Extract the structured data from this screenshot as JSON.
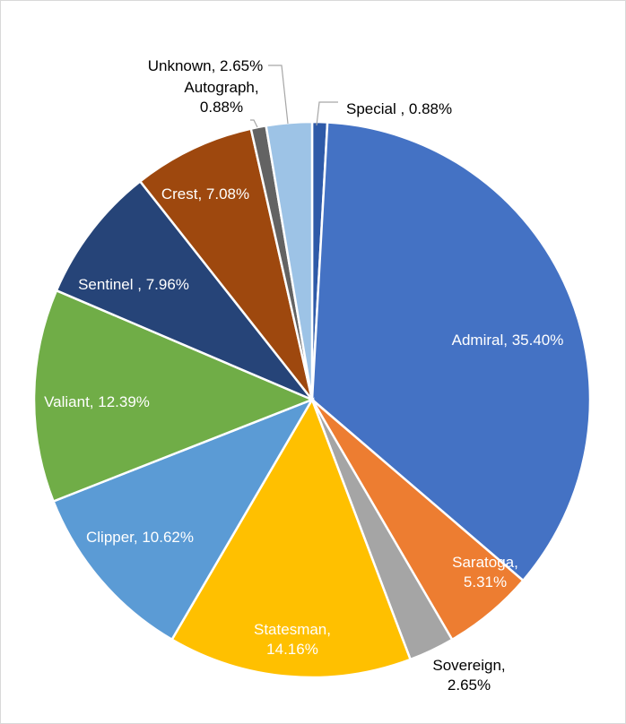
{
  "chart_data": {
    "type": "pie",
    "title": "",
    "slices": [
      {
        "label": "Special ",
        "value": 0.88,
        "display": [
          "Special , 0.88%"
        ],
        "color": "#2e5aa8",
        "label_color": "#000000"
      },
      {
        "label": "Admiral",
        "value": 35.4,
        "display": [
          "Admiral, 35.40%"
        ],
        "color": "#4472c4",
        "label_color": "#ffffff"
      },
      {
        "label": "Saratoga",
        "value": 5.31,
        "display": [
          "Saratoga,",
          "5.31%"
        ],
        "color": "#ed7d31",
        "label_color": "#ffffff"
      },
      {
        "label": "Sovereign",
        "value": 2.65,
        "display": [
          "Sovereign,",
          "2.65%"
        ],
        "color": "#a5a5a5",
        "label_color": "#000000"
      },
      {
        "label": "Statesman",
        "value": 14.16,
        "display": [
          "Statesman,",
          "14.16%"
        ],
        "color": "#ffc000",
        "label_color": "#ffffff"
      },
      {
        "label": "Clipper",
        "value": 10.62,
        "display": [
          "Clipper, 10.62%"
        ],
        "color": "#5b9bd5",
        "label_color": "#ffffff"
      },
      {
        "label": "Valiant",
        "value": 12.39,
        "display": [
          "Valiant, 12.39%"
        ],
        "color": "#70ad47",
        "label_color": "#ffffff"
      },
      {
        "label": "Sentinel ",
        "value": 7.96,
        "display": [
          "Sentinel , 7.96%"
        ],
        "color": "#264478",
        "label_color": "#ffffff"
      },
      {
        "label": "Crest",
        "value": 7.08,
        "display": [
          "Crest, 7.08%"
        ],
        "color": "#9e480e",
        "label_color": "#ffffff"
      },
      {
        "label": "Autograph",
        "value": 0.88,
        "display": [
          "Autograph,",
          "0.88%"
        ],
        "color": "#636363",
        "label_color": "#000000"
      },
      {
        "label": "Unknown",
        "value": 2.65,
        "display": [
          "Unknown, 2.65%"
        ],
        "color": "#9dc3e6",
        "label_color": "#000000"
      }
    ],
    "legend": "none",
    "start_angle": "12 o'clock",
    "direction": "clockwise"
  }
}
